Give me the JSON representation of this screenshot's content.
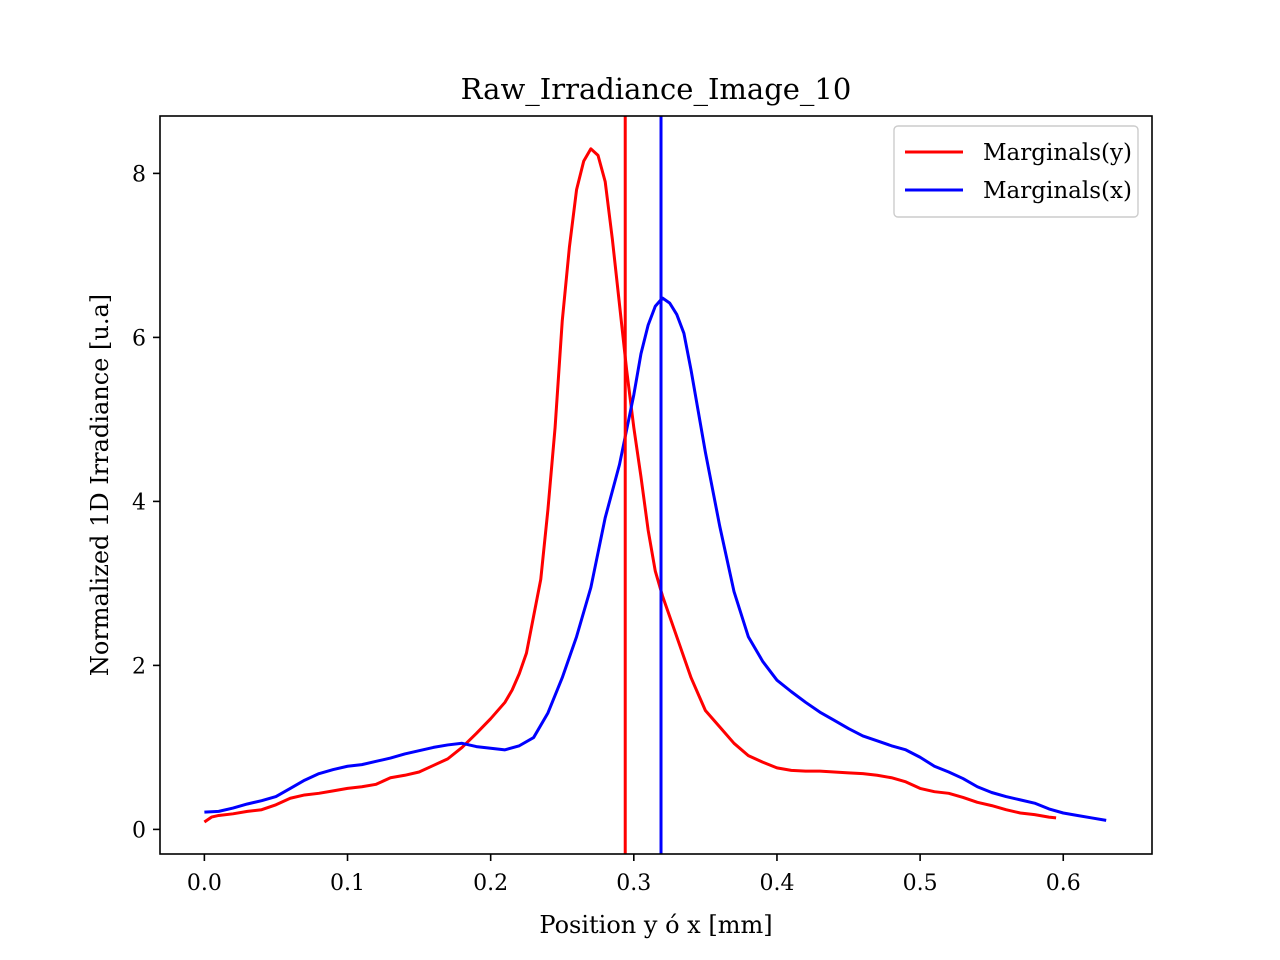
{
  "chart_data": {
    "type": "line",
    "title": "Raw_Irradiance_Image_10",
    "xlabel": "Position y ó x [mm]",
    "ylabel": "Normalized 1D Irradiance [u.a]",
    "xlim": [
      -0.031,
      0.662
    ],
    "ylim": [
      -0.3,
      8.7
    ],
    "xticks": [
      {
        "value": 0.0,
        "label": "0.0"
      },
      {
        "value": 0.1,
        "label": "0.1"
      },
      {
        "value": 0.2,
        "label": "0.2"
      },
      {
        "value": 0.3,
        "label": "0.3"
      },
      {
        "value": 0.4,
        "label": "0.4"
      },
      {
        "value": 0.5,
        "label": "0.5"
      },
      {
        "value": 0.6,
        "label": "0.6"
      }
    ],
    "yticks": [
      {
        "value": 0,
        "label": "0"
      },
      {
        "value": 2,
        "label": "2"
      },
      {
        "value": 4,
        "label": "4"
      },
      {
        "value": 6,
        "label": "6"
      },
      {
        "value": 8,
        "label": "8"
      }
    ],
    "grid": false,
    "legend_position": "top-right",
    "series": [
      {
        "name": "Marginals(y)",
        "color": "#ff0000",
        "x": [
          0.0,
          0.005,
          0.01,
          0.02,
          0.03,
          0.04,
          0.05,
          0.06,
          0.07,
          0.08,
          0.09,
          0.1,
          0.11,
          0.12,
          0.13,
          0.14,
          0.15,
          0.16,
          0.17,
          0.18,
          0.19,
          0.2,
          0.21,
          0.215,
          0.22,
          0.225,
          0.23,
          0.235,
          0.24,
          0.245,
          0.25,
          0.255,
          0.26,
          0.265,
          0.27,
          0.275,
          0.28,
          0.285,
          0.29,
          0.295,
          0.3,
          0.305,
          0.31,
          0.315,
          0.32,
          0.325,
          0.33,
          0.335,
          0.34,
          0.345,
          0.35,
          0.36,
          0.37,
          0.38,
          0.39,
          0.4,
          0.41,
          0.42,
          0.43,
          0.44,
          0.45,
          0.46,
          0.47,
          0.48,
          0.49,
          0.5,
          0.51,
          0.52,
          0.53,
          0.54,
          0.55,
          0.56,
          0.57,
          0.58,
          0.59,
          0.595
        ],
        "y": [
          0.09,
          0.15,
          0.17,
          0.19,
          0.22,
          0.24,
          0.3,
          0.38,
          0.42,
          0.44,
          0.47,
          0.5,
          0.52,
          0.55,
          0.63,
          0.66,
          0.7,
          0.78,
          0.86,
          1.0,
          1.17,
          1.35,
          1.55,
          1.7,
          1.9,
          2.15,
          2.6,
          3.05,
          3.9,
          4.9,
          6.2,
          7.1,
          7.8,
          8.15,
          8.3,
          8.22,
          7.9,
          7.2,
          6.4,
          5.6,
          4.9,
          4.3,
          3.65,
          3.15,
          2.85,
          2.6,
          2.35,
          2.1,
          1.85,
          1.65,
          1.45,
          1.25,
          1.05,
          0.9,
          0.82,
          0.75,
          0.72,
          0.71,
          0.71,
          0.7,
          0.69,
          0.68,
          0.66,
          0.63,
          0.58,
          0.5,
          0.46,
          0.44,
          0.39,
          0.33,
          0.29,
          0.24,
          0.2,
          0.18,
          0.15,
          0.14
        ]
      },
      {
        "name": "Marginals(x)",
        "color": "#0000ff",
        "x": [
          0.0,
          0.01,
          0.02,
          0.03,
          0.04,
          0.05,
          0.06,
          0.07,
          0.08,
          0.09,
          0.1,
          0.11,
          0.12,
          0.13,
          0.14,
          0.15,
          0.16,
          0.17,
          0.18,
          0.19,
          0.2,
          0.21,
          0.22,
          0.23,
          0.24,
          0.25,
          0.26,
          0.27,
          0.28,
          0.29,
          0.3,
          0.305,
          0.31,
          0.315,
          0.32,
          0.325,
          0.33,
          0.335,
          0.34,
          0.345,
          0.35,
          0.36,
          0.37,
          0.38,
          0.39,
          0.4,
          0.41,
          0.42,
          0.43,
          0.44,
          0.45,
          0.46,
          0.47,
          0.48,
          0.49,
          0.5,
          0.51,
          0.52,
          0.53,
          0.54,
          0.55,
          0.56,
          0.57,
          0.58,
          0.59,
          0.6,
          0.61,
          0.62,
          0.63
        ],
        "y": [
          0.21,
          0.22,
          0.26,
          0.31,
          0.35,
          0.4,
          0.5,
          0.6,
          0.68,
          0.73,
          0.77,
          0.79,
          0.83,
          0.87,
          0.92,
          0.96,
          1.0,
          1.03,
          1.05,
          1.01,
          0.99,
          0.97,
          1.02,
          1.12,
          1.42,
          1.85,
          2.35,
          2.95,
          3.8,
          4.45,
          5.3,
          5.8,
          6.15,
          6.38,
          6.48,
          6.42,
          6.28,
          6.05,
          5.6,
          5.1,
          4.6,
          3.7,
          2.9,
          2.35,
          2.05,
          1.82,
          1.68,
          1.55,
          1.43,
          1.33,
          1.23,
          1.14,
          1.08,
          1.02,
          0.97,
          0.88,
          0.77,
          0.7,
          0.62,
          0.52,
          0.45,
          0.4,
          0.36,
          0.32,
          0.25,
          0.2,
          0.17,
          0.14,
          0.11
        ]
      }
    ],
    "vlines": [
      {
        "x": 0.294,
        "color": "#ff0000"
      },
      {
        "x": 0.319,
        "color": "#0000ff"
      }
    ]
  }
}
